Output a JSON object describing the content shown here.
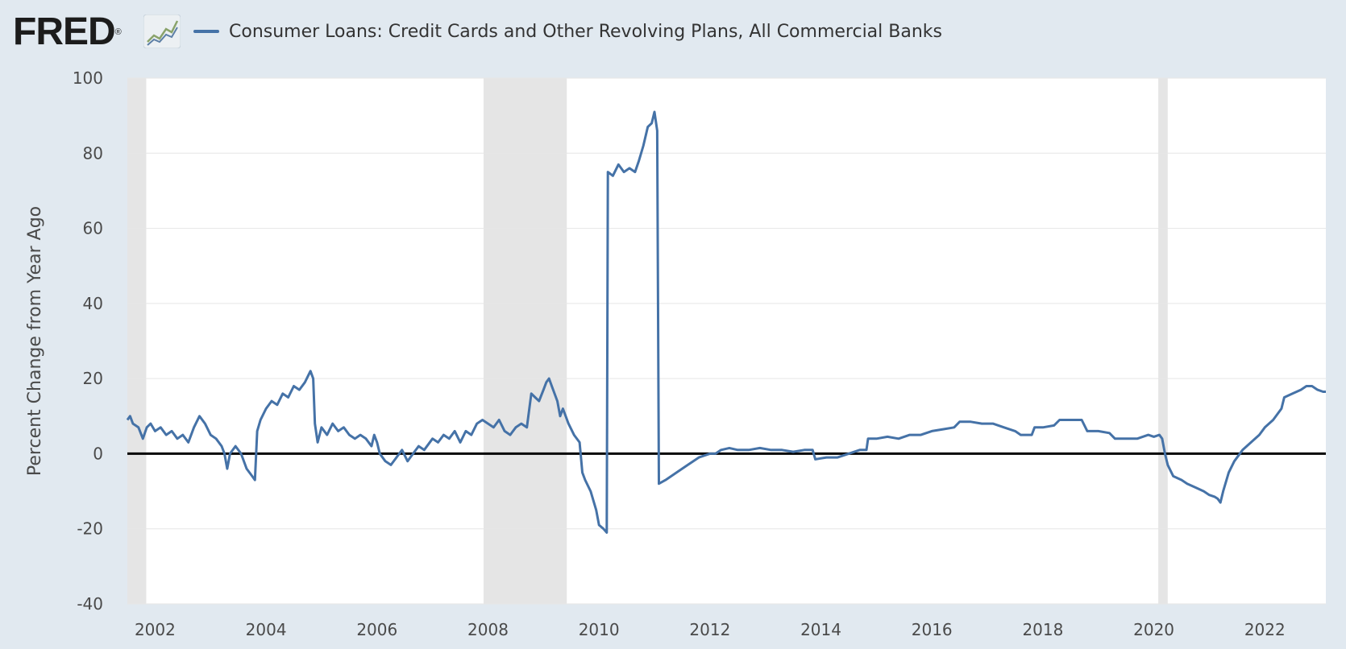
{
  "header": {
    "logo_text": "FRED",
    "logo_mark": "®",
    "logo_icon": "line-chart-icon"
  },
  "chart_data": {
    "type": "line",
    "title": "",
    "xlabel": "",
    "ylabel": "Percent Change from Year Ago",
    "xlim": [
      2001.5,
      2023.1
    ],
    "ylim": [
      -40,
      100
    ],
    "yticks": [
      -40,
      -20,
      0,
      20,
      40,
      60,
      80,
      100
    ],
    "yticklabels": [
      "-40",
      "-20",
      "0",
      "20",
      "40",
      "60",
      "80",
      "100"
    ],
    "xticks": [
      2002,
      2004,
      2006,
      2008,
      2010,
      2012,
      2014,
      2016,
      2018,
      2020,
      2022
    ],
    "xticklabels": [
      "2002",
      "2004",
      "2006",
      "2008",
      "2010",
      "2012",
      "2014",
      "2016",
      "2018",
      "2020",
      "2022"
    ],
    "grid": true,
    "zero_line": true,
    "legend_position": "top-left",
    "colors": {
      "series": "#4572a7",
      "recession": "#e5e5e5",
      "zero_line": "#000000",
      "grid": "#e6e6e6"
    },
    "recessions": [
      [
        2001.5,
        2001.84
      ],
      [
        2007.92,
        2009.42
      ],
      [
        2020.08,
        2020.25
      ]
    ],
    "series": [
      {
        "name": "Consumer Loans: Credit Cards and Other Revolving Plans, All Commercial Banks",
        "points": [
          [
            2001.5,
            9
          ],
          [
            2001.55,
            10
          ],
          [
            2001.6,
            8
          ],
          [
            2001.7,
            7
          ],
          [
            2001.78,
            4
          ],
          [
            2001.85,
            7
          ],
          [
            2001.92,
            8
          ],
          [
            2002.0,
            6
          ],
          [
            2002.1,
            7
          ],
          [
            2002.2,
            5
          ],
          [
            2002.3,
            6
          ],
          [
            2002.4,
            4
          ],
          [
            2002.5,
            5
          ],
          [
            2002.6,
            3
          ],
          [
            2002.7,
            7
          ],
          [
            2002.8,
            10
          ],
          [
            2002.9,
            8
          ],
          [
            2003.0,
            5
          ],
          [
            2003.1,
            4
          ],
          [
            2003.2,
            2
          ],
          [
            2003.25,
            0
          ],
          [
            2003.3,
            -4
          ],
          [
            2003.35,
            0
          ],
          [
            2003.45,
            2
          ],
          [
            2003.55,
            0
          ],
          [
            2003.65,
            -4
          ],
          [
            2003.75,
            -6
          ],
          [
            2003.8,
            -7
          ],
          [
            2003.84,
            6
          ],
          [
            2003.9,
            9
          ],
          [
            2004.0,
            12
          ],
          [
            2004.1,
            14
          ],
          [
            2004.2,
            13
          ],
          [
            2004.3,
            16
          ],
          [
            2004.4,
            15
          ],
          [
            2004.5,
            18
          ],
          [
            2004.6,
            17
          ],
          [
            2004.7,
            19
          ],
          [
            2004.8,
            22
          ],
          [
            2004.85,
            20
          ],
          [
            2004.88,
            8
          ],
          [
            2004.93,
            3
          ],
          [
            2005.0,
            7
          ],
          [
            2005.1,
            5
          ],
          [
            2005.2,
            8
          ],
          [
            2005.3,
            6
          ],
          [
            2005.4,
            7
          ],
          [
            2005.5,
            5
          ],
          [
            2005.6,
            4
          ],
          [
            2005.7,
            5
          ],
          [
            2005.8,
            4
          ],
          [
            2005.9,
            2
          ],
          [
            2005.95,
            5
          ],
          [
            2006.0,
            3
          ],
          [
            2006.05,
            0
          ],
          [
            2006.15,
            -2
          ],
          [
            2006.25,
            -3
          ],
          [
            2006.35,
            -1
          ],
          [
            2006.45,
            1
          ],
          [
            2006.55,
            -2
          ],
          [
            2006.65,
            0
          ],
          [
            2006.75,
            2
          ],
          [
            2006.85,
            1
          ],
          [
            2007.0,
            4
          ],
          [
            2007.1,
            3
          ],
          [
            2007.2,
            5
          ],
          [
            2007.3,
            4
          ],
          [
            2007.4,
            6
          ],
          [
            2007.5,
            3
          ],
          [
            2007.6,
            6
          ],
          [
            2007.7,
            5
          ],
          [
            2007.8,
            8
          ],
          [
            2007.9,
            9
          ],
          [
            2008.0,
            8
          ],
          [
            2008.1,
            7
          ],
          [
            2008.2,
            9
          ],
          [
            2008.3,
            6
          ],
          [
            2008.4,
            5
          ],
          [
            2008.5,
            7
          ],
          [
            2008.6,
            8
          ],
          [
            2008.7,
            7
          ],
          [
            2008.78,
            16
          ],
          [
            2008.85,
            15
          ],
          [
            2008.92,
            14
          ],
          [
            2009.0,
            17
          ],
          [
            2009.05,
            19
          ],
          [
            2009.1,
            20
          ],
          [
            2009.15,
            18
          ],
          [
            2009.25,
            14
          ],
          [
            2009.3,
            10
          ],
          [
            2009.35,
            12
          ],
          [
            2009.45,
            8
          ],
          [
            2009.55,
            5
          ],
          [
            2009.65,
            3
          ],
          [
            2009.7,
            -5
          ],
          [
            2009.75,
            -7
          ],
          [
            2009.85,
            -10
          ],
          [
            2009.95,
            -15
          ],
          [
            2010.0,
            -19
          ],
          [
            2010.08,
            -20
          ],
          [
            2010.14,
            -21
          ],
          [
            2010.16,
            75
          ],
          [
            2010.25,
            74
          ],
          [
            2010.35,
            77
          ],
          [
            2010.45,
            75
          ],
          [
            2010.55,
            76
          ],
          [
            2010.65,
            75
          ],
          [
            2010.72,
            78
          ],
          [
            2010.8,
            82
          ],
          [
            2010.88,
            87
          ],
          [
            2010.95,
            88
          ],
          [
            2011.0,
            91
          ],
          [
            2011.05,
            86
          ],
          [
            2011.08,
            -8
          ],
          [
            2011.2,
            -7
          ],
          [
            2011.4,
            -5
          ],
          [
            2011.6,
            -3
          ],
          [
            2011.8,
            -1
          ],
          [
            2012.0,
            0
          ],
          [
            2012.1,
            0
          ],
          [
            2012.2,
            1
          ],
          [
            2012.35,
            1.5
          ],
          [
            2012.5,
            1
          ],
          [
            2012.7,
            1
          ],
          [
            2012.9,
            1.5
          ],
          [
            2013.1,
            1
          ],
          [
            2013.3,
            1
          ],
          [
            2013.5,
            0.5
          ],
          [
            2013.7,
            1
          ],
          [
            2013.85,
            1
          ],
          [
            2013.9,
            -1.5
          ],
          [
            2014.1,
            -1
          ],
          [
            2014.3,
            -1
          ],
          [
            2014.5,
            0
          ],
          [
            2014.7,
            1
          ],
          [
            2014.82,
            1
          ],
          [
            2014.85,
            4
          ],
          [
            2015.0,
            4
          ],
          [
            2015.2,
            4.5
          ],
          [
            2015.4,
            4
          ],
          [
            2015.6,
            5
          ],
          [
            2015.8,
            5
          ],
          [
            2016.0,
            6
          ],
          [
            2016.2,
            6.5
          ],
          [
            2016.4,
            7
          ],
          [
            2016.5,
            8.5
          ],
          [
            2016.7,
            8.5
          ],
          [
            2016.9,
            8
          ],
          [
            2017.1,
            8
          ],
          [
            2017.3,
            7
          ],
          [
            2017.5,
            6
          ],
          [
            2017.6,
            5
          ],
          [
            2017.8,
            5
          ],
          [
            2017.85,
            7
          ],
          [
            2018.0,
            7
          ],
          [
            2018.2,
            7.5
          ],
          [
            2018.3,
            9
          ],
          [
            2018.5,
            9
          ],
          [
            2018.7,
            9
          ],
          [
            2018.8,
            6
          ],
          [
            2019.0,
            6
          ],
          [
            2019.2,
            5.5
          ],
          [
            2019.3,
            4
          ],
          [
            2019.5,
            4
          ],
          [
            2019.7,
            4
          ],
          [
            2019.9,
            5
          ],
          [
            2020.0,
            4.5
          ],
          [
            2020.1,
            5
          ],
          [
            2020.15,
            4
          ],
          [
            2020.2,
            0
          ],
          [
            2020.25,
            -3
          ],
          [
            2020.35,
            -6
          ],
          [
            2020.5,
            -7
          ],
          [
            2020.6,
            -8
          ],
          [
            2020.75,
            -9
          ],
          [
            2020.9,
            -10
          ],
          [
            2021.0,
            -11
          ],
          [
            2021.1,
            -11.5
          ],
          [
            2021.15,
            -12
          ],
          [
            2021.2,
            -13
          ],
          [
            2021.25,
            -10
          ],
          [
            2021.35,
            -5
          ],
          [
            2021.45,
            -2
          ],
          [
            2021.6,
            1
          ],
          [
            2021.75,
            3
          ],
          [
            2021.9,
            5
          ],
          [
            2022.0,
            7
          ],
          [
            2022.15,
            9
          ],
          [
            2022.3,
            12
          ],
          [
            2022.35,
            15
          ],
          [
            2022.5,
            16
          ],
          [
            2022.65,
            17
          ],
          [
            2022.75,
            18
          ],
          [
            2022.85,
            18
          ],
          [
            2022.95,
            17
          ],
          [
            2023.05,
            16.5
          ],
          [
            2023.1,
            16.5
          ]
        ]
      }
    ]
  }
}
